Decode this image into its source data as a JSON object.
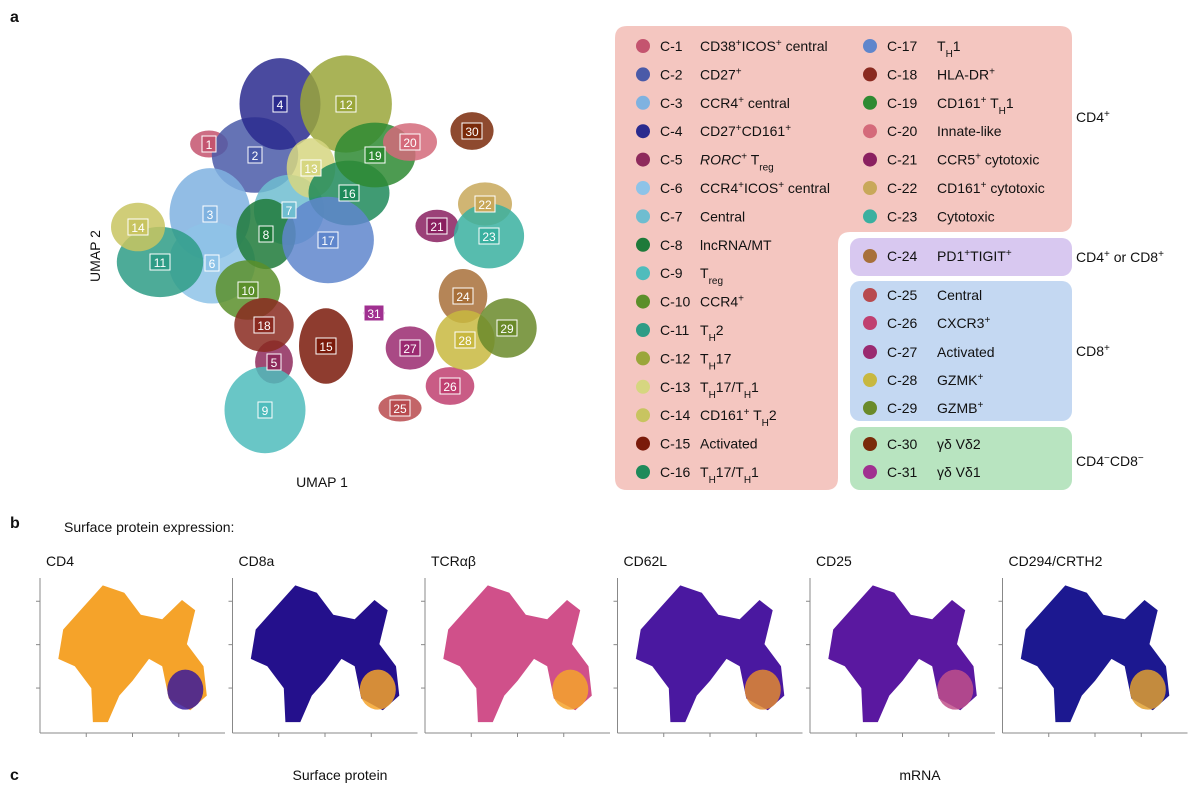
{
  "panel_labels": {
    "a": "a",
    "b": "b",
    "c": "c"
  },
  "umap": {
    "xlabel": "UMAP 1",
    "ylabel": "UMAP 2"
  },
  "clusters": [
    {
      "id": "C-1",
      "num": "1",
      "color": "#c4546f",
      "label": [
        {
          "t": "CD38"
        },
        {
          "sup": "+"
        },
        {
          "t": "ICOS"
        },
        {
          "sup": "+"
        },
        {
          "t": " central"
        }
      ]
    },
    {
      "id": "C-2",
      "num": "2",
      "color": "#4a5aa8",
      "label": [
        {
          "t": "CD27"
        },
        {
          "sup": "+"
        }
      ]
    },
    {
      "id": "C-3",
      "num": "3",
      "color": "#7fb2e0",
      "label": [
        {
          "t": "CCR4"
        },
        {
          "sup": "+"
        },
        {
          "t": " central"
        }
      ]
    },
    {
      "id": "C-4",
      "num": "4",
      "color": "#2a2a8e",
      "label": [
        {
          "t": "CD27"
        },
        {
          "sup": "+"
        },
        {
          "t": "CD161"
        },
        {
          "sup": "+"
        }
      ]
    },
    {
      "id": "C-5",
      "num": "5",
      "color": "#8e2a5c",
      "label": [
        {
          "i": "RORC"
        },
        {
          "sup": "+"
        },
        {
          "t": " T"
        },
        {
          "sub": "reg"
        }
      ]
    },
    {
      "id": "C-6",
      "num": "6",
      "color": "#8ec3e8",
      "label": [
        {
          "t": "CCR4"
        },
        {
          "sup": "+"
        },
        {
          "t": "ICOS"
        },
        {
          "sup": "+"
        },
        {
          "t": " central"
        }
      ]
    },
    {
      "id": "C-7",
      "num": "7",
      "color": "#6fbdd0",
      "label": [
        {
          "t": "Central"
        }
      ]
    },
    {
      "id": "C-8",
      "num": "8",
      "color": "#1e7a3a",
      "label": [
        {
          "t": "lncRNA/MT"
        }
      ]
    },
    {
      "id": "C-9",
      "num": "9",
      "color": "#4fbcbc",
      "label": [
        {
          "t": "T"
        },
        {
          "sub": "reg"
        }
      ]
    },
    {
      "id": "C-10",
      "num": "10",
      "color": "#5b8f2a",
      "label": [
        {
          "t": "CCR4"
        },
        {
          "sup": "+"
        }
      ]
    },
    {
      "id": "C-11",
      "num": "11",
      "color": "#2e9c86",
      "label": [
        {
          "t": "T"
        },
        {
          "sub": "H"
        },
        {
          "t": "2"
        }
      ]
    },
    {
      "id": "C-12",
      "num": "12",
      "color": "#9aa63a",
      "label": [
        {
          "t": "T"
        },
        {
          "sub": "H"
        },
        {
          "t": "17"
        }
      ]
    },
    {
      "id": "C-13",
      "num": "13",
      "color": "#d6d680",
      "label": [
        {
          "t": "T"
        },
        {
          "sub": "H"
        },
        {
          "t": "17/T"
        },
        {
          "sub": "H"
        },
        {
          "t": "1"
        }
      ]
    },
    {
      "id": "C-14",
      "num": "14",
      "color": "#c8c460",
      "label": [
        {
          "t": "CD161"
        },
        {
          "sup": "+"
        },
        {
          "t": " T"
        },
        {
          "sub": "H"
        },
        {
          "t": "2"
        }
      ]
    },
    {
      "id": "C-15",
      "num": "15",
      "color": "#7a1a0a",
      "label": [
        {
          "t": "Activated"
        }
      ]
    },
    {
      "id": "C-16",
      "num": "16",
      "color": "#1e8a5a",
      "label": [
        {
          "t": "T"
        },
        {
          "sub": "H"
        },
        {
          "t": "17/T"
        },
        {
          "sub": "H"
        },
        {
          "t": "1"
        }
      ]
    },
    {
      "id": "C-17",
      "num": "17",
      "color": "#5f86cc",
      "label": [
        {
          "t": "T"
        },
        {
          "sub": "H"
        },
        {
          "t": "1"
        }
      ]
    },
    {
      "id": "C-18",
      "num": "18",
      "color": "#8a2a20",
      "label": [
        {
          "t": "HLA-DR"
        },
        {
          "sup": "+"
        }
      ]
    },
    {
      "id": "C-19",
      "num": "19",
      "color": "#2e8a32",
      "label": [
        {
          "t": "CD161"
        },
        {
          "sup": "+"
        },
        {
          "t": " T"
        },
        {
          "sub": "H"
        },
        {
          "t": "1"
        }
      ]
    },
    {
      "id": "C-20",
      "num": "20",
      "color": "#d46a7a",
      "label": [
        {
          "t": "Innate-like"
        }
      ]
    },
    {
      "id": "C-21",
      "num": "21",
      "color": "#8a2060",
      "label": [
        {
          "t": "CCR5"
        },
        {
          "sup": "+"
        },
        {
          "t": " cytotoxic"
        }
      ]
    },
    {
      "id": "C-22",
      "num": "22",
      "color": "#c8a85a",
      "label": [
        {
          "t": "CD161"
        },
        {
          "sup": "+"
        },
        {
          "t": " cytotoxic"
        }
      ]
    },
    {
      "id": "C-23",
      "num": "23",
      "color": "#3ab0a0",
      "label": [
        {
          "t": "Cytotoxic"
        }
      ]
    },
    {
      "id": "C-24",
      "num": "24",
      "color": "#a8703a",
      "label": [
        {
          "t": "PD1"
        },
        {
          "sup": "+"
        },
        {
          "t": "TIGIT"
        },
        {
          "sup": "+"
        }
      ]
    },
    {
      "id": "C-25",
      "num": "25",
      "color": "#b84a4e",
      "label": [
        {
          "t": "Central"
        }
      ]
    },
    {
      "id": "C-26",
      "num": "26",
      "color": "#c04070",
      "label": [
        {
          "t": "CXCR3"
        },
        {
          "sup": "+"
        }
      ]
    },
    {
      "id": "C-27",
      "num": "27",
      "color": "#9a2a70",
      "label": [
        {
          "t": "Activated"
        }
      ]
    },
    {
      "id": "C-28",
      "num": "28",
      "color": "#c8b840",
      "label": [
        {
          "t": "GZMK"
        },
        {
          "sup": "+"
        }
      ]
    },
    {
      "id": "C-29",
      "num": "29",
      "color": "#6a8a2a",
      "label": [
        {
          "t": "GZMB"
        },
        {
          "sup": "+"
        }
      ]
    },
    {
      "id": "C-30",
      "num": "30",
      "color": "#7a2a0a",
      "label": [
        {
          "t": "γδ Vδ2"
        }
      ]
    },
    {
      "id": "C-31",
      "num": "31",
      "color": "#a03090",
      "label": [
        {
          "t": "γδ Vδ1"
        }
      ]
    }
  ],
  "groups": [
    {
      "label": [
        {
          "t": "CD4"
        },
        {
          "sup": "+"
        }
      ],
      "color": "#f4c6c0"
    },
    {
      "label": [
        {
          "t": "CD4"
        },
        {
          "sup": "+"
        },
        {
          "t": " or CD8"
        },
        {
          "sup": "+"
        }
      ],
      "color": "#d8c8f0"
    },
    {
      "label": [
        {
          "t": "CD8"
        },
        {
          "sup": "+"
        }
      ],
      "color": "#c4d8f2"
    },
    {
      "label": [
        {
          "t": "CD4"
        },
        {
          "sup": "−"
        },
        {
          "t": "CD8"
        },
        {
          "sup": "−"
        }
      ],
      "color": "#b8e4c0"
    }
  ],
  "expression": {
    "title": "Surface protein expression:",
    "panels": [
      {
        "marker": "CD4",
        "colors": [
          "#f5a32a",
          "#3a1a9a"
        ]
      },
      {
        "marker": "CD8a",
        "colors": [
          "#24108c",
          "#f5a32a"
        ]
      },
      {
        "marker": "TCRαβ",
        "colors": [
          "#d0508a",
          "#f5a32a"
        ]
      },
      {
        "marker": "CD62L",
        "colors": [
          "#4a18a0",
          "#e08a30"
        ]
      },
      {
        "marker": "CD25",
        "colors": [
          "#5a18a0",
          "#c0508a"
        ]
      },
      {
        "marker": "CD294/CRTH2",
        "colors": [
          "#1c1890",
          "#e0a030"
        ]
      }
    ]
  },
  "panel_c": {
    "left": "Surface protein",
    "right": "mRNA"
  }
}
